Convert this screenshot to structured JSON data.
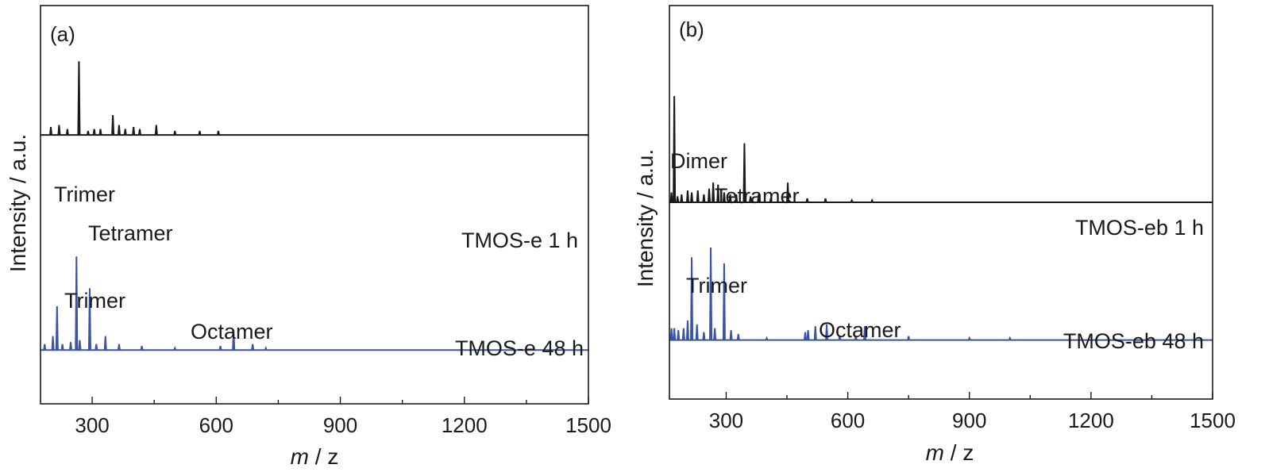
{
  "chart_data": [
    {
      "type": "line",
      "panel_label": "(a)",
      "xlabel_italic": "m",
      "xlabel_rest": " / z",
      "ylabel": "Intensity / a.u.",
      "xlim": [
        175,
        1500
      ],
      "xticks": [
        "300",
        "600",
        "900",
        "1200",
        "1500"
      ],
      "xtick_values": [
        300,
        600,
        900,
        1200,
        1500
      ],
      "minor_xticks": [
        450,
        750,
        1050,
        1350
      ],
      "ylim": [
        0,
        2
      ],
      "grid": false,
      "series": [
        {
          "name": "TMOS-e 1 h",
          "color": "#1a1a1a",
          "baseline": 1.35,
          "peaks": [
            [
              200,
              0.04
            ],
            [
              220,
              0.05
            ],
            [
              240,
              0.03
            ],
            [
              268,
              0.37
            ],
            [
              290,
              0.02
            ],
            [
              305,
              0.03
            ],
            [
              320,
              0.03
            ],
            [
              350,
              0.1
            ],
            [
              365,
              0.05
            ],
            [
              380,
              0.03
            ],
            [
              400,
              0.04
            ],
            [
              415,
              0.03
            ],
            [
              455,
              0.05
            ],
            [
              500,
              0.02
            ],
            [
              560,
              0.02
            ],
            [
              605,
              0.02
            ]
          ]
        },
        {
          "name": "TMOS-e 48 h",
          "color": "#3a53a4",
          "baseline": 0.27,
          "peaks": [
            [
              185,
              0.03
            ],
            [
              205,
              0.07
            ],
            [
              215,
              0.22
            ],
            [
              228,
              0.03
            ],
            [
              248,
              0.04
            ],
            [
              262,
              0.47
            ],
            [
              270,
              0.05
            ],
            [
              294,
              0.31
            ],
            [
              310,
              0.03
            ],
            [
              332,
              0.07
            ],
            [
              365,
              0.03
            ],
            [
              420,
              0.02
            ],
            [
              500,
              0.01
            ],
            [
              610,
              0.02
            ],
            [
              642,
              0.1
            ],
            [
              688,
              0.03
            ],
            [
              720,
              0.01
            ]
          ]
        }
      ],
      "annotations": [
        {
          "text": "Trimer",
          "series": "TMOS-e 1 h"
        },
        {
          "text": "Tetramer",
          "series": "TMOS-e 1 h"
        },
        {
          "text": "Trimer",
          "series": "TMOS-e 48 h"
        },
        {
          "text": "Octamer",
          "series": "TMOS-e 48 h"
        }
      ]
    },
    {
      "type": "line",
      "panel_label": "(b)",
      "xlabel_italic": "m",
      "xlabel_rest": " / z",
      "ylabel": "Intensity / a.u.",
      "xlim": [
        160,
        1500
      ],
      "xticks": [
        "300",
        "600",
        "900",
        "1200",
        "1500"
      ],
      "xtick_values": [
        300,
        600,
        900,
        1200,
        1500
      ],
      "minor_xticks": [
        450,
        750,
        1050,
        1350
      ],
      "ylim": [
        0,
        2
      ],
      "grid": false,
      "series": [
        {
          "name": "TMOS-eb 1 h",
          "color": "#1a1a1a",
          "baseline": 1.0,
          "peaks": [
            [
              165,
              0.05
            ],
            [
              172,
              0.54
            ],
            [
              180,
              0.03
            ],
            [
              190,
              0.04
            ],
            [
              205,
              0.06
            ],
            [
              215,
              0.05
            ],
            [
              230,
              0.06
            ],
            [
              245,
              0.04
            ],
            [
              258,
              0.07
            ],
            [
              268,
              0.1
            ],
            [
              280,
              0.09
            ],
            [
              295,
              0.05
            ],
            [
              310,
              0.04
            ],
            [
              325,
              0.04
            ],
            [
              345,
              0.3
            ],
            [
              360,
              0.03
            ],
            [
              380,
              0.04
            ],
            [
              410,
              0.02
            ],
            [
              452,
              0.1
            ],
            [
              500,
              0.02
            ],
            [
              545,
              0.02
            ],
            [
              610,
              0.01
            ],
            [
              660,
              0.01
            ]
          ]
        },
        {
          "name": "TMOS-eb 48 h",
          "color": "#3a53a4",
          "baseline": 0.3,
          "peaks": [
            [
              165,
              0.06
            ],
            [
              172,
              0.06
            ],
            [
              182,
              0.05
            ],
            [
              195,
              0.06
            ],
            [
              205,
              0.1
            ],
            [
              215,
              0.42
            ],
            [
              228,
              0.08
            ],
            [
              245,
              0.04
            ],
            [
              262,
              0.47
            ],
            [
              272,
              0.06
            ],
            [
              295,
              0.39
            ],
            [
              312,
              0.05
            ],
            [
              330,
              0.03
            ],
            [
              400,
              0.01
            ],
            [
              495,
              0.04
            ],
            [
              502,
              0.05
            ],
            [
              520,
              0.07
            ],
            [
              548,
              0.08
            ],
            [
              580,
              0.02
            ],
            [
              620,
              0.02
            ],
            [
              642,
              0.07
            ],
            [
              750,
              0.02
            ],
            [
              900,
              0.01
            ],
            [
              1000,
              0.01
            ]
          ]
        }
      ],
      "annotations": [
        {
          "text": "Dimer",
          "series": "TMOS-eb 1 h"
        },
        {
          "text": "Tetramer",
          "series": "TMOS-eb 1 h"
        },
        {
          "text": "Trimer",
          "series": "TMOS-eb 48 h"
        },
        {
          "text": "Octamer",
          "series": "TMOS-eb 48 h"
        }
      ]
    }
  ]
}
